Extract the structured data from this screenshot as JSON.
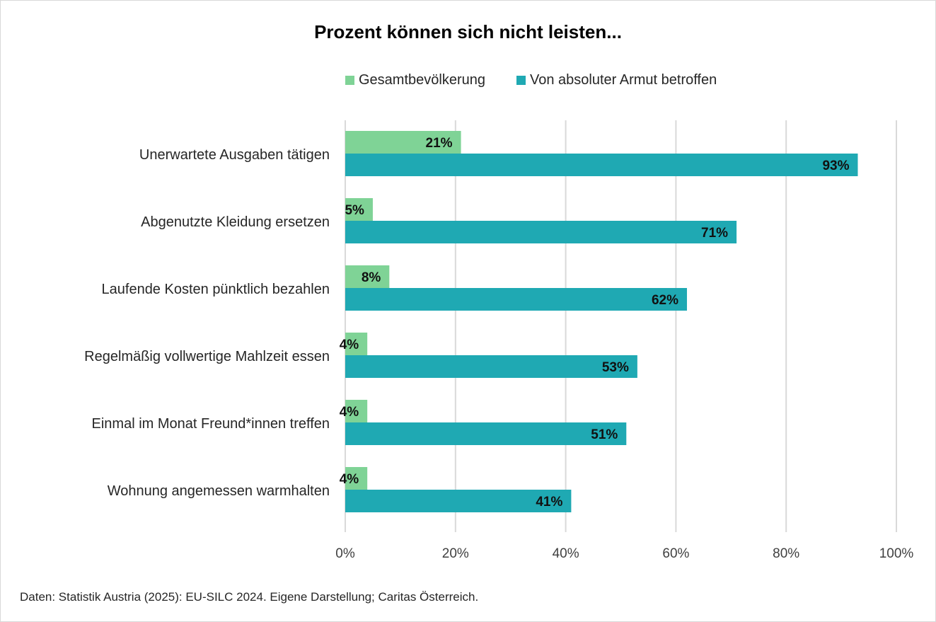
{
  "chart_data": {
    "type": "bar",
    "orientation": "horizontal",
    "title": "Prozent können sich nicht leisten...",
    "categories": [
      "Unerwartete Ausgaben tätigen",
      "Abgenutzte Kleidung ersetzen",
      "Laufende Kosten pünktlich bezahlen",
      "Regelmäßig vollwertige Mahlzeit essen",
      "Einmal im Monat Freund*innen treffen",
      "Wohnung angemessen warmhalten"
    ],
    "series": [
      {
        "name": "Gesamtbevölkerung",
        "color": "#7fd396",
        "values": [
          21,
          5,
          8,
          4,
          4,
          4
        ],
        "labels": [
          "21%",
          "5%",
          "8%",
          "4%",
          "4%",
          "4%"
        ]
      },
      {
        "name": "Von absoluter Armut betroffen",
        "color": "#1fa9b3",
        "values": [
          93,
          71,
          62,
          53,
          51,
          41
        ],
        "labels": [
          "93%",
          "71%",
          "62%",
          "53%",
          "51%",
          "41%"
        ]
      }
    ],
    "xlim": [
      0,
      100
    ],
    "xticks": [
      0,
      20,
      40,
      60,
      80,
      100
    ],
    "xtick_labels": [
      "0%",
      "20%",
      "40%",
      "60%",
      "80%",
      "100%"
    ],
    "xlabel": "",
    "ylabel": "",
    "grid": "vertical",
    "legend": "top",
    "footnote": "Daten: Statistik Austria (2025): EU-SILC 2024. Eigene Darstellung; Caritas Österreich."
  }
}
